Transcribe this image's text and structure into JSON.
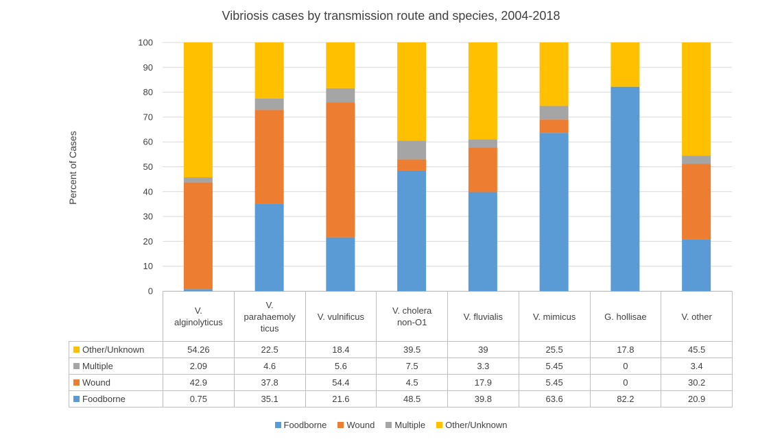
{
  "chart_data": {
    "type": "bar",
    "stacked": true,
    "title": "Vibriosis cases by transmission route and species, 2004-2018",
    "ylabel": "Percent of Cases",
    "xlabel": "",
    "ylim": [
      0,
      100
    ],
    "yticks": [
      0,
      10,
      20,
      30,
      40,
      50,
      60,
      70,
      80,
      90,
      100
    ],
    "grid": true,
    "legend_position": "bottom",
    "categories": [
      "V. alginolyticus",
      "V. parahaemolyticus",
      "V. vulnificus",
      "V. cholera non-O1",
      "V. fluvialis",
      "V. mimicus",
      "G. hollisae",
      "V. other"
    ],
    "category_display": [
      "V.\nalginolyticus",
      "V.\nparahaemoly\nticus",
      "V. vulnificus",
      "V. cholera\nnon-O1",
      "V. fluvialis",
      "V. mimicus",
      "G. hollisae",
      "V. other"
    ],
    "series": [
      {
        "name": "Foodborne",
        "color": "#5b9bd5",
        "values": [
          0.75,
          35.1,
          21.6,
          48.5,
          39.8,
          63.6,
          82.2,
          20.9
        ]
      },
      {
        "name": "Wound",
        "color": "#ed7d31",
        "values": [
          42.9,
          37.8,
          54.4,
          4.5,
          17.9,
          5.45,
          0,
          30.2
        ]
      },
      {
        "name": "Multiple",
        "color": "#a5a5a5",
        "values": [
          2.09,
          4.6,
          5.6,
          7.5,
          3.3,
          5.45,
          0,
          3.4
        ]
      },
      {
        "name": "Other/Unknown",
        "color": "#ffc000",
        "values": [
          54.26,
          22.5,
          18.4,
          39.5,
          39,
          25.5,
          17.8,
          45.5
        ]
      }
    ],
    "table_row_order": [
      "Other/Unknown",
      "Multiple",
      "Wound",
      "Foodborne"
    ],
    "table_rows": [
      {
        "name": "Other/Unknown",
        "color": "#ffc000",
        "cells": [
          "54.26",
          "22.5",
          "18.4",
          "39.5",
          "39",
          "25.5",
          "17.8",
          "45.5"
        ]
      },
      {
        "name": "Multiple",
        "color": "#a5a5a5",
        "cells": [
          "2.09",
          "4.6",
          "5.6",
          "7.5",
          "3.3",
          "5.45",
          "0",
          "3.4"
        ]
      },
      {
        "name": "Wound",
        "color": "#ed7d31",
        "cells": [
          "42.9",
          "37.8",
          "54.4",
          "4.5",
          "17.9",
          "5.45",
          "0",
          "30.2"
        ]
      },
      {
        "name": "Foodborne",
        "color": "#5b9bd5",
        "cells": [
          "0.75",
          "35.1",
          "21.6",
          "48.5",
          "39.8",
          "63.6",
          "82.2",
          "20.9"
        ]
      }
    ]
  }
}
